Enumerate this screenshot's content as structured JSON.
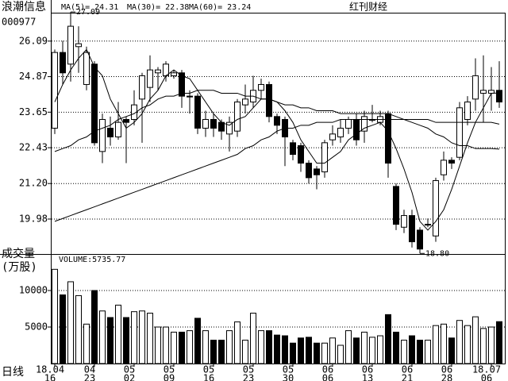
{
  "chart_data": {
    "type": "candlestick",
    "title": "浪潮信息",
    "subtitle": "000977",
    "source": "红刊财经",
    "period_label": "日线",
    "categories": [
      [
        "18.04",
        "16"
      ],
      null,
      null,
      null,
      null,
      [
        "04",
        "23"
      ],
      null,
      null,
      null,
      null,
      [
        "05",
        "02"
      ],
      null,
      null,
      null,
      null,
      [
        "05",
        "09"
      ],
      null,
      null,
      null,
      null,
      [
        "05",
        "16"
      ],
      null,
      null,
      null,
      null,
      [
        "05",
        "23"
      ],
      null,
      null,
      null,
      null,
      [
        "05",
        "30"
      ],
      null,
      null,
      null,
      null,
      [
        "06",
        "06"
      ],
      null,
      null,
      null,
      null,
      [
        "06",
        "13"
      ],
      null,
      null,
      null,
      null,
      [
        "06",
        "21"
      ],
      null,
      null,
      null,
      null,
      [
        "06",
        "28"
      ],
      null,
      null,
      null,
      null,
      [
        "18.07",
        "06"
      ],
      null
    ],
    "open": [
      23.1,
      25.7,
      25.3,
      25.9,
      24.6,
      25.3,
      22.3,
      23.1,
      22.8,
      23.4,
      23.4,
      24.1,
      24.5,
      25.0,
      24.9,
      24.9,
      25.0,
      24.2,
      24.2,
      23.1,
      23.4,
      23.3,
      22.9,
      23.0,
      23.9,
      24.0,
      24.4,
      24.6,
      23.5,
      23.4,
      22.6,
      22.5,
      21.9,
      21.7,
      21.6,
      22.7,
      22.8,
      23.1,
      23.4,
      23.0,
      23.4,
      23.3,
      23.6,
      21.1,
      19.7,
      20.1,
      19.6,
      19.8,
      19.4,
      21.5,
      22.0,
      22.1,
      23.4,
      24.1,
      24.3,
      24.3,
      24.4
    ],
    "high": [
      25.8,
      26.1,
      27.09,
      26.6,
      25.9,
      25.4,
      23.6,
      23.5,
      24.0,
      23.5,
      24.4,
      25.0,
      25.6,
      25.2,
      25.4,
      25.1,
      25.1,
      24.4,
      24.3,
      23.7,
      23.6,
      23.4,
      23.5,
      24.1,
      24.6,
      24.9,
      24.8,
      24.7,
      23.6,
      23.5,
      22.7,
      22.6,
      22.0,
      21.8,
      22.7,
      23.2,
      23.4,
      23.5,
      23.6,
      23.7,
      23.9,
      23.7,
      23.7,
      21.2,
      20.3,
      20.3,
      19.7,
      20.0,
      21.4,
      22.3,
      22.1,
      24.0,
      24.2,
      25.5,
      25.6,
      25.2,
      25.4
    ],
    "low": [
      22.9,
      24.6,
      24.7,
      25.0,
      24.4,
      22.5,
      21.9,
      22.5,
      22.7,
      21.9,
      23.2,
      22.6,
      24.0,
      24.4,
      24.7,
      24.8,
      23.8,
      23.6,
      22.9,
      22.8,
      22.8,
      22.7,
      22.3,
      22.8,
      23.6,
      23.8,
      24.1,
      23.3,
      22.9,
      21.8,
      22.0,
      21.6,
      21.2,
      21.0,
      21.4,
      22.5,
      22.6,
      22.9,
      22.5,
      22.6,
      23.3,
      23.2,
      21.4,
      19.6,
      19.5,
      19.0,
      18.8,
      19.7,
      19.2,
      21.3,
      21.7,
      22.0,
      23.2,
      23.7,
      23.3,
      23.7,
      23.8
    ],
    "close": [
      25.7,
      25.0,
      26.6,
      26.0,
      25.7,
      22.6,
      23.4,
      22.8,
      23.3,
      23.3,
      23.9,
      24.9,
      25.1,
      25.1,
      25.3,
      25.0,
      24.2,
      24.2,
      23.1,
      23.4,
      23.1,
      23.0,
      23.3,
      24.0,
      24.1,
      24.4,
      24.6,
      23.5,
      23.2,
      22.8,
      22.2,
      21.9,
      21.4,
      21.5,
      22.6,
      22.9,
      23.1,
      23.4,
      22.7,
      23.5,
      23.4,
      23.5,
      21.9,
      19.8,
      20.1,
      19.2,
      18.95,
      19.8,
      21.3,
      22.0,
      21.9,
      23.8,
      24.0,
      24.9,
      24.4,
      24.4,
      24.0
    ],
    "series": [
      {
        "name": "MA(5)= 24.31",
        "color": "#000000",
        "values": [
          24.0,
          24.6,
          25.1,
          25.5,
          25.8,
          25.2,
          24.9,
          24.1,
          23.6,
          23.1,
          23.3,
          23.6,
          24.1,
          24.4,
          24.9,
          25.1,
          24.9,
          24.8,
          24.4,
          24.0,
          23.6,
          23.3,
          23.2,
          23.4,
          23.5,
          23.8,
          24.1,
          24.1,
          24.0,
          23.7,
          23.3,
          22.7,
          22.3,
          21.9,
          21.9,
          22.1,
          22.3,
          22.7,
          22.9,
          23.1,
          23.2,
          23.3,
          23.0,
          22.4,
          21.7,
          20.9,
          19.9,
          19.6,
          19.9,
          20.3,
          21.0,
          21.8,
          22.6,
          23.3,
          23.8,
          24.3,
          24.31
        ]
      },
      {
        "name": "MA(30)= 22.38",
        "color": "#000000",
        "values": [
          22.3,
          22.4,
          22.5,
          22.7,
          22.8,
          23.0,
          23.1,
          23.2,
          23.4,
          23.5,
          23.6,
          23.8,
          23.9,
          24.1,
          24.2,
          24.2,
          24.3,
          24.3,
          24.4,
          24.4,
          24.4,
          24.3,
          24.3,
          24.3,
          24.2,
          24.2,
          24.1,
          24.1,
          24.0,
          23.9,
          23.9,
          23.8,
          23.8,
          23.7,
          23.7,
          23.7,
          23.6,
          23.6,
          23.6,
          23.6,
          23.6,
          23.6,
          23.6,
          23.5,
          23.4,
          23.3,
          23.2,
          23.1,
          22.9,
          22.8,
          22.6,
          22.5,
          22.5,
          22.4,
          22.4,
          22.4,
          22.38
        ]
      },
      {
        "name": "MA(60)= 23.24",
        "color": "#000000",
        "values": [
          19.9,
          20.0,
          20.1,
          20.2,
          20.3,
          20.4,
          20.5,
          20.6,
          20.7,
          20.8,
          20.9,
          21.0,
          21.1,
          21.2,
          21.3,
          21.4,
          21.5,
          21.6,
          21.7,
          21.8,
          21.9,
          22.0,
          22.1,
          22.2,
          22.4,
          22.5,
          22.7,
          22.8,
          23.0,
          23.1,
          23.1,
          23.2,
          23.2,
          23.3,
          23.3,
          23.3,
          23.4,
          23.4,
          23.4,
          23.4,
          23.4,
          23.4,
          23.4,
          23.4,
          23.4,
          23.4,
          23.4,
          23.4,
          23.3,
          23.3,
          23.3,
          23.3,
          23.3,
          23.3,
          23.3,
          23.3,
          23.24
        ]
      }
    ],
    "annotations": [
      {
        "text": "27.09",
        "value": 27.09
      },
      {
        "text": "18.80",
        "value": 18.8
      }
    ],
    "ylim": [
      18.78,
      27.12
    ],
    "yticks": [
      {
        "value": 19.98,
        "label": "19.98"
      },
      {
        "value": 21.2,
        "label": "21.20"
      },
      22.43,
      23.65,
      24.87,
      26.09
    ],
    "grid": true,
    "volume": {
      "title": "VOLUME:5735.77",
      "axis_label": [
        "成交量",
        "(万股)"
      ],
      "values": [
        12900,
        9400,
        11200,
        9300,
        5400,
        10000,
        7200,
        6300,
        8000,
        6300,
        7100,
        7200,
        6900,
        5000,
        5000,
        4300,
        4300,
        4500,
        6200,
        4500,
        3200,
        3200,
        4500,
        5700,
        3200,
        6900,
        4500,
        4500,
        3900,
        3800,
        2800,
        3500,
        3600,
        2800,
        2800,
        3500,
        2500,
        4500,
        3500,
        4300,
        3600,
        3800,
        6700,
        4300,
        3200,
        3800,
        3200,
        3200,
        5200,
        5400,
        3500,
        5900,
        5200,
        6400,
        4800,
        5000,
        5735.77
      ],
      "ylim": [
        0,
        15000
      ],
      "yticks": [
        5000,
        10000
      ]
    }
  }
}
